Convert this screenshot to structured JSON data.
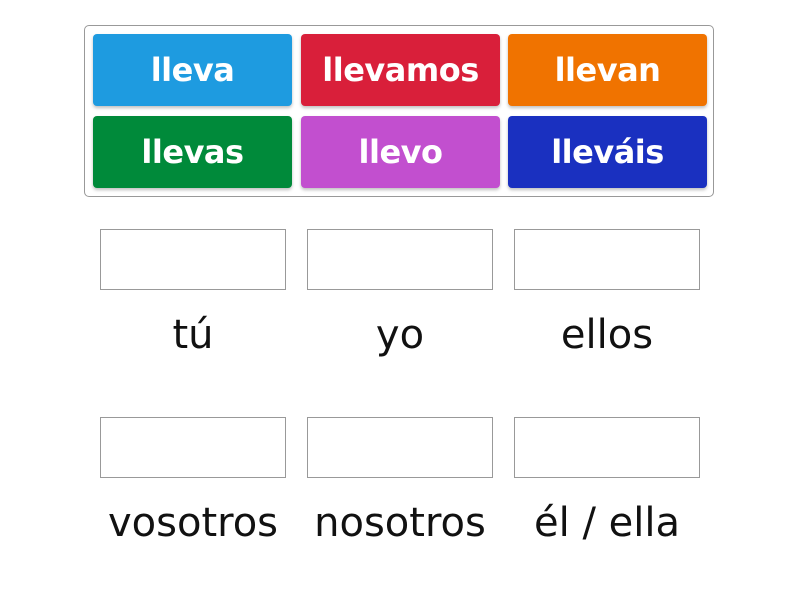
{
  "tiles": [
    {
      "label": "lleva",
      "color": "#1e9be0"
    },
    {
      "label": "llevamos",
      "color": "#d91f3a"
    },
    {
      "label": "llevan",
      "color": "#f07300"
    },
    {
      "label": "llevas",
      "color": "#008a3a"
    },
    {
      "label": "llevo",
      "color": "#c24fcf"
    },
    {
      "label": "lleváis",
      "color": "#1a30c0"
    }
  ],
  "targets": [
    {
      "label": "tú"
    },
    {
      "label": "yo"
    },
    {
      "label": "ellos"
    },
    {
      "label": "vosotros"
    },
    {
      "label": "nosotros"
    },
    {
      "label": "él / ella"
    }
  ]
}
